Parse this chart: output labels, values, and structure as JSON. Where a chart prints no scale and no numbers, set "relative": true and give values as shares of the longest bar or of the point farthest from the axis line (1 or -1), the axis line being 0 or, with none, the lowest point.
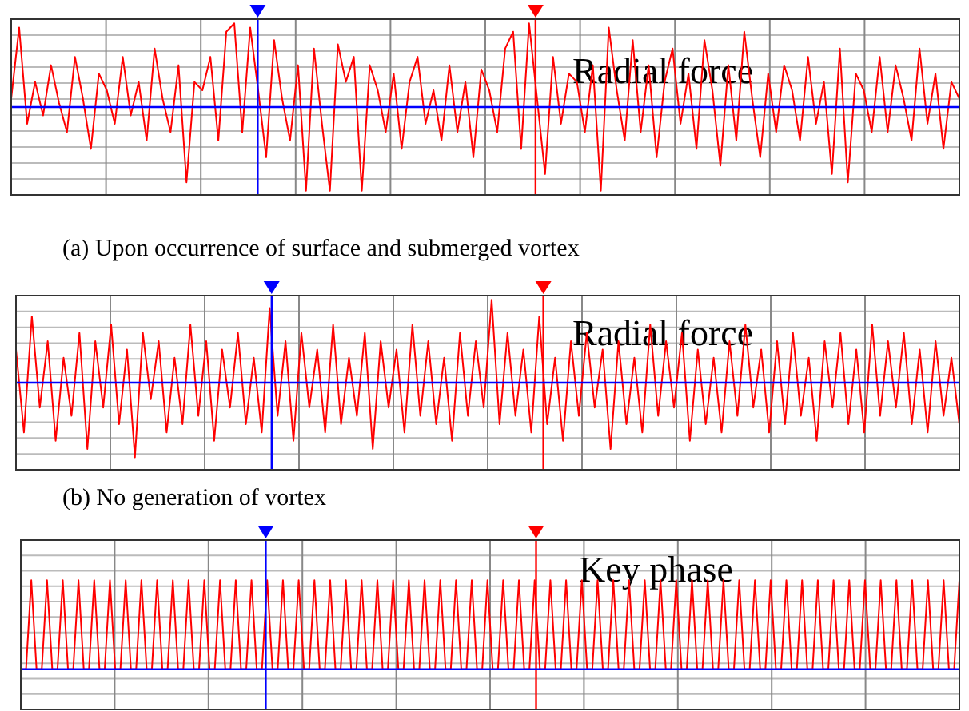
{
  "chart_data": [
    {
      "type": "line",
      "title": "Radial force",
      "relative": true,
      "grid": true,
      "annotations": [
        "(a) Upon occurrence of surface and submerged vortex"
      ],
      "categories": [
        null,
        null,
        null,
        null,
        null,
        null,
        null,
        null,
        null,
        null,
        null,
        null,
        null,
        null,
        null,
        null,
        null,
        null,
        null,
        null,
        null,
        null,
        null,
        null,
        null,
        null,
        null,
        null,
        null,
        null,
        null,
        null,
        null,
        null,
        null,
        null,
        null,
        null,
        null,
        null,
        null,
        null,
        null,
        null,
        null,
        null,
        null,
        null,
        null,
        null,
        null,
        null,
        null,
        null,
        null,
        null,
        null,
        null,
        null,
        null,
        null,
        null,
        null,
        null,
        null,
        null,
        null,
        null,
        null,
        null,
        null,
        null,
        null,
        null,
        null,
        null,
        null,
        null,
        null,
        null,
        null,
        null,
        null,
        null,
        null,
        null,
        null,
        null,
        null,
        null,
        null,
        null,
        null,
        null,
        null,
        null,
        null,
        null,
        null,
        null,
        null,
        null,
        null,
        null,
        null,
        null,
        null,
        null,
        null,
        null,
        null,
        null,
        null,
        null,
        null,
        null,
        null,
        null,
        null,
        null
      ],
      "series": [
        {
          "color": "#ff0000",
          "values": [
            0.1,
            0.95,
            -0.2,
            0.3,
            -0.1,
            0.5,
            0.05,
            -0.3,
            0.6,
            0.1,
            -0.5,
            0.4,
            0.2,
            -0.2,
            0.6,
            -0.1,
            0.3,
            -0.4,
            0.7,
            0.1,
            -0.3,
            0.5,
            -0.9,
            0.3,
            0.2,
            0.6,
            -0.4,
            0.9,
            1,
            -0.3,
            0.95,
            0.2,
            -0.6,
            0.8,
            0.1,
            -0.4,
            0.5,
            -1,
            0.7,
            -0.2,
            -1,
            0.75,
            0.3,
            0.6,
            -1,
            0.5,
            0.2,
            -0.3,
            0.4,
            -0.5,
            0.3,
            0.6,
            -0.2,
            0.2,
            -0.4,
            0.5,
            -0.3,
            0.3,
            -0.6,
            0.45,
            0.2,
            -0.3,
            0.7,
            0.9,
            -0.5,
            1,
            0.1,
            -0.8,
            0.6,
            -0.2,
            0.4,
            0.3,
            -0.3,
            0.5,
            -1,
            0.95,
            0.2,
            -0.4,
            0.8,
            -0.3,
            0.5,
            -0.6,
            0.3,
            0.7,
            -0.2,
            0.4,
            -0.5,
            0.8,
            0.2,
            -0.7,
            0.5,
            -0.4,
            0.9,
            0.1,
            -0.6,
            0.4,
            -0.3,
            0.5,
            0.2,
            -0.4,
            0.6,
            -0.2,
            0.3,
            -0.8,
            0.7,
            -0.9,
            0.4,
            0.2,
            -0.3,
            0.6,
            -0.3,
            0.5,
            0.1,
            -0.4,
            0.7,
            -0.2,
            0.4,
            -0.5,
            0.3,
            0.1
          ]
        }
      ],
      "ref_lines": [
        {
          "axis": "y",
          "value": 0,
          "color": "#0000ff"
        }
      ]
    },
    {
      "type": "line",
      "title": "Radial force",
      "relative": true,
      "grid": true,
      "annotations": [
        "(b) No generation of vortex"
      ],
      "categories": [
        null,
        null,
        null,
        null,
        null,
        null,
        null,
        null,
        null,
        null,
        null,
        null,
        null,
        null,
        null,
        null,
        null,
        null,
        null,
        null,
        null,
        null,
        null,
        null,
        null,
        null,
        null,
        null,
        null,
        null,
        null,
        null,
        null,
        null,
        null,
        null,
        null,
        null,
        null,
        null,
        null,
        null,
        null,
        null,
        null,
        null,
        null,
        null,
        null,
        null,
        null,
        null,
        null,
        null,
        null,
        null,
        null,
        null,
        null,
        null,
        null,
        null,
        null,
        null,
        null,
        null,
        null,
        null,
        null,
        null,
        null,
        null,
        null,
        null,
        null,
        null,
        null,
        null,
        null,
        null,
        null,
        null,
        null,
        null,
        null,
        null,
        null,
        null,
        null,
        null,
        null,
        null,
        null,
        null,
        null,
        null,
        null,
        null,
        null,
        null,
        null,
        null,
        null,
        null,
        null,
        null,
        null,
        null,
        null,
        null,
        null,
        null,
        null,
        null,
        null,
        null,
        null,
        null,
        null,
        null
      ],
      "series": [
        {
          "color": "#ff0000",
          "values": [
            0.4,
            -0.6,
            0.8,
            -0.3,
            0.5,
            -0.7,
            0.3,
            -0.4,
            0.6,
            -0.8,
            0.5,
            -0.3,
            0.7,
            -0.5,
            0.4,
            -0.9,
            0.6,
            -0.2,
            0.5,
            -0.6,
            0.3,
            -0.5,
            0.7,
            -0.4,
            0.5,
            -0.7,
            0.4,
            -0.3,
            0.6,
            -0.5,
            0.3,
            -0.6,
            0.9,
            -0.4,
            0.5,
            -0.7,
            0.6,
            -0.3,
            0.4,
            -0.6,
            0.7,
            -0.5,
            0.3,
            -0.4,
            0.6,
            -0.8,
            0.5,
            -0.3,
            0.4,
            -0.6,
            0.7,
            -0.4,
            0.5,
            -0.5,
            0.3,
            -0.7,
            0.6,
            -0.4,
            0.5,
            -0.3,
            1,
            -0.5,
            0.6,
            -0.4,
            0.4,
            -0.6,
            0.8,
            -0.5,
            0.3,
            -0.7,
            0.5,
            -0.4,
            0.6,
            -0.3,
            0.4,
            -0.8,
            0.5,
            -0.5,
            0.3,
            -0.6,
            0.7,
            -0.4,
            0.5,
            -0.3,
            0.6,
            -0.7,
            0.4,
            -0.5,
            0.3,
            -0.6,
            0.5,
            -0.4,
            0.7,
            -0.3,
            0.4,
            -0.6,
            0.5,
            -0.5,
            0.6,
            -0.4,
            0.3,
            -0.7,
            0.5,
            -0.3,
            0.6,
            -0.5,
            0.4,
            -0.6,
            0.7,
            -0.4,
            0.5,
            -0.3,
            0.6,
            -0.5,
            0.4,
            -0.6,
            0.5,
            -0.4,
            0.3,
            -0.5
          ]
        }
      ],
      "ref_lines": [
        {
          "axis": "y",
          "value": 0,
          "color": "#0000ff"
        }
      ]
    },
    {
      "type": "line",
      "title": "Key phase",
      "relative": true,
      "grid": true,
      "categories": [
        null,
        null,
        null,
        null,
        null,
        null,
        null,
        null,
        null,
        null,
        null,
        null,
        null,
        null,
        null,
        null,
        null,
        null,
        null,
        null,
        null,
        null,
        null,
        null,
        null,
        null,
        null,
        null,
        null,
        null,
        null,
        null,
        null,
        null,
        null,
        null,
        null,
        null,
        null,
        null,
        null,
        null,
        null,
        null,
        null,
        null,
        null,
        null,
        null,
        null,
        null,
        null,
        null,
        null,
        null,
        null,
        null,
        null,
        null,
        null,
        null,
        null,
        null,
        null,
        null,
        null,
        null,
        null,
        null,
        null,
        null,
        null,
        null,
        null,
        null,
        null,
        null,
        null,
        null,
        null,
        null,
        null,
        null,
        null,
        null,
        null,
        null,
        null,
        null,
        null,
        null,
        null,
        null,
        null,
        null,
        null,
        null,
        null,
        null,
        null,
        null,
        null,
        null,
        null,
        null,
        null,
        null,
        null,
        null,
        null,
        null,
        null,
        null,
        null,
        null,
        null,
        null,
        null,
        null,
        null,
        null,
        null,
        null,
        null,
        null,
        null,
        null,
        null,
        null,
        null,
        null,
        null,
        null,
        null,
        null,
        null,
        null,
        null,
        null,
        null,
        null,
        null,
        null,
        null,
        null,
        null,
        null,
        null,
        null,
        null,
        null,
        null,
        null,
        null,
        null,
        null,
        null,
        null,
        null,
        null,
        null,
        null,
        null,
        null,
        null,
        null,
        null,
        null,
        null,
        null,
        null,
        null,
        null,
        null,
        null,
        null,
        null,
        null,
        null,
        null
      ],
      "series": [
        {
          "color": "#ff0000",
          "values": [
            0,
            0,
            1,
            0,
            0,
            1,
            0,
            0,
            1,
            0,
            0,
            1,
            0,
            0,
            1,
            0,
            0,
            1,
            0,
            0,
            1,
            0,
            0,
            1,
            0,
            0,
            1,
            0,
            0,
            1,
            0,
            0,
            1,
            0,
            0,
            1,
            0,
            0,
            1,
            0,
            0,
            1,
            0,
            0,
            1,
            0,
            0,
            1,
            0,
            0,
            1,
            0,
            0,
            1,
            0,
            0,
            1,
            0,
            0,
            1,
            0,
            0,
            1,
            0,
            0,
            1,
            0,
            0,
            1,
            0,
            0,
            1,
            0,
            0,
            1,
            0,
            0,
            1,
            0,
            0,
            1,
            0,
            0,
            1,
            0,
            0,
            1,
            0,
            0,
            1,
            0,
            0,
            1,
            0,
            0,
            1,
            0,
            0,
            1,
            0,
            0,
            1,
            0,
            0,
            1,
            0,
            0,
            1,
            0,
            0,
            1,
            0,
            0,
            1,
            0,
            0,
            1,
            0,
            0,
            1,
            0,
            0,
            1,
            0,
            0,
            1,
            0,
            0,
            1,
            0,
            0,
            1,
            0,
            0,
            1,
            0,
            0,
            1,
            0,
            0,
            1,
            0,
            0,
            1,
            0,
            0,
            1,
            0,
            0,
            1,
            0,
            0,
            1,
            0,
            0,
            1,
            0,
            0,
            1,
            0,
            0,
            1,
            0,
            0,
            1,
            0,
            0,
            1,
            0,
            0,
            1,
            0,
            0,
            1,
            0,
            0,
            1,
            0,
            0,
            1
          ]
        }
      ],
      "ref_lines": [
        {
          "axis": "y",
          "value": 0,
          "color": "#0000ff"
        }
      ]
    }
  ]
}
